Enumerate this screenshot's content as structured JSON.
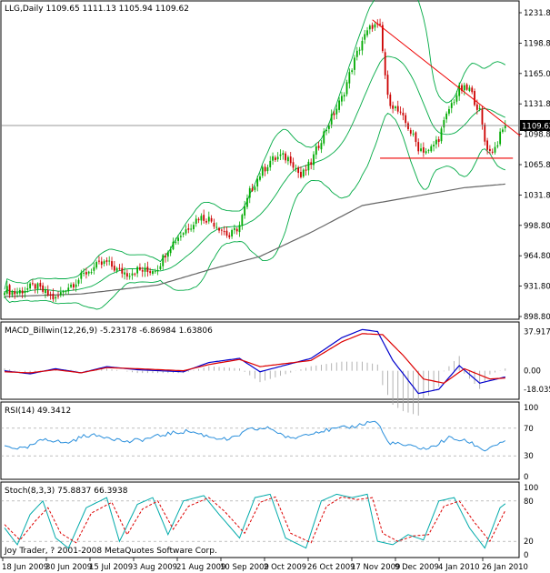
{
  "chart_data": {
    "type": "candlestick",
    "main": {
      "symbol_header": "LLG,Daily  1109.65 1111.13 1105.94 1109.62",
      "ylim": [
        898.8,
        1231.8
      ],
      "y_ticks": [
        "1231.80",
        "1198.80",
        "1165.00",
        "1131.80",
        "1098.80",
        "1065.80",
        "1031.80",
        "998.80",
        "964.80",
        "931.80",
        "898.80"
      ],
      "last_price": "1109.62",
      "indicators": [
        "Bollinger Bands",
        "long moving average (gray)"
      ],
      "price_path": [
        [
          0,
          927
        ],
        [
          4,
          922
        ],
        [
          8,
          926
        ],
        [
          12,
          930
        ],
        [
          16,
          922
        ],
        [
          20,
          915
        ],
        [
          24,
          928
        ],
        [
          28,
          935
        ],
        [
          32,
          945
        ],
        [
          36,
          952
        ],
        [
          40,
          956
        ],
        [
          44,
          948
        ],
        [
          48,
          944
        ],
        [
          52,
          948
        ],
        [
          56,
          946
        ],
        [
          60,
          951
        ],
        [
          64,
          972
        ],
        [
          68,
          985
        ],
        [
          72,
          996
        ],
        [
          76,
          1007
        ],
        [
          80,
          1005
        ],
        [
          84,
          996
        ],
        [
          88,
          985
        ],
        [
          92,
          998
        ],
        [
          96,
          1035
        ],
        [
          100,
          1055
        ],
        [
          104,
          1070
        ],
        [
          108,
          1075
        ],
        [
          112,
          1072
        ],
        [
          116,
          1052
        ],
        [
          120,
          1068
        ],
        [
          124,
          1095
        ],
        [
          128,
          1118
        ],
        [
          132,
          1140
        ],
        [
          136,
          1175
        ],
        [
          140,
          1205
        ],
        [
          144,
          1222
        ],
        [
          147,
          1218
        ],
        [
          150,
          1140
        ],
        [
          154,
          1125
        ],
        [
          158,
          1108
        ],
        [
          162,
          1085
        ],
        [
          166,
          1080
        ],
        [
          170,
          1096
        ],
        [
          174,
          1128
        ],
        [
          178,
          1150
        ],
        [
          182,
          1150
        ],
        [
          186,
          1125
        ],
        [
          188,
          1092
        ],
        [
          190,
          1080
        ],
        [
          192,
          1085
        ],
        [
          194,
          1098
        ],
        [
          196,
          1109.62
        ]
      ],
      "ma_path": [
        [
          0,
          918
        ],
        [
          30,
          921
        ],
        [
          60,
          931
        ],
        [
          80,
          948
        ],
        [
          100,
          963
        ],
        [
          120,
          990
        ],
        [
          140,
          1020
        ],
        [
          160,
          1030
        ],
        [
          180,
          1040
        ],
        [
          196,
          1044
        ]
      ],
      "annotations": {
        "trendline": [
          [
            144,
            1228
          ],
          [
            199,
            1104
          ]
        ],
        "support": [
          [
            147,
            1073
          ],
          [
            199,
            1073
          ]
        ]
      }
    },
    "macd": {
      "label": "MACD_Billwin(12,26,9) -5.23178 -6.86984 1.63806",
      "y_ticks": [
        "37.9177",
        "0.00",
        "-18.0356"
      ],
      "ylim": [
        -25,
        42
      ],
      "series": [
        {
          "color": "#0000cc",
          "points": [
            [
              0,
              0
            ],
            [
              10,
              -3
            ],
            [
              20,
              2
            ],
            [
              30,
              -2
            ],
            [
              40,
              4
            ],
            [
              52,
              1
            ],
            [
              70,
              -1
            ],
            [
              80,
              8
            ],
            [
              92,
              12
            ],
            [
              100,
              -1
            ],
            [
              120,
              12
            ],
            [
              132,
              32
            ],
            [
              140,
              40
            ],
            [
              146,
              38
            ],
            [
              152,
              10
            ],
            [
              162,
              -22
            ],
            [
              170,
              -18
            ],
            [
              178,
              5
            ],
            [
              186,
              -12
            ],
            [
              196,
              -6
            ]
          ]
        },
        {
          "color": "#dd0000",
          "points": [
            [
              0,
              -1
            ],
            [
              10,
              -2
            ],
            [
              20,
              1
            ],
            [
              30,
              -2
            ],
            [
              40,
              3
            ],
            [
              52,
              2
            ],
            [
              70,
              0
            ],
            [
              80,
              6
            ],
            [
              92,
              11
            ],
            [
              100,
              4
            ],
            [
              120,
              10
            ],
            [
              132,
              28
            ],
            [
              140,
              36
            ],
            [
              148,
              35
            ],
            [
              156,
              15
            ],
            [
              164,
              -8
            ],
            [
              172,
              -12
            ],
            [
              180,
              2
            ],
            [
              190,
              -8
            ],
            [
              196,
              -7
            ]
          ]
        }
      ]
    },
    "rsi": {
      "label": "RSI(14) 49.3412",
      "y_ticks": [
        "100",
        "70",
        "30",
        "0"
      ],
      "levels": [
        70,
        30
      ],
      "ylim": [
        0,
        100
      ],
      "points": [
        [
          0,
          44
        ],
        [
          8,
          40
        ],
        [
          16,
          55
        ],
        [
          24,
          48
        ],
        [
          32,
          60
        ],
        [
          40,
          58
        ],
        [
          48,
          50
        ],
        [
          56,
          55
        ],
        [
          64,
          62
        ],
        [
          72,
          66
        ],
        [
          80,
          58
        ],
        [
          88,
          53
        ],
        [
          96,
          68
        ],
        [
          104,
          70
        ],
        [
          112,
          54
        ],
        [
          120,
          64
        ],
        [
          128,
          68
        ],
        [
          136,
          72
        ],
        [
          144,
          80
        ],
        [
          146,
          78
        ],
        [
          150,
          50
        ],
        [
          158,
          44
        ],
        [
          166,
          40
        ],
        [
          174,
          56
        ],
        [
          182,
          50
        ],
        [
          188,
          38
        ],
        [
          192,
          46
        ],
        [
          196,
          49
        ]
      ]
    },
    "stoch": {
      "label": "Stoch(8,3,3) 75.8837 66.3938",
      "y_ticks": [
        "100",
        "80",
        "20",
        "0"
      ],
      "levels": [
        80,
        20
      ],
      "ylim": [
        0,
        100
      ],
      "series": [
        {
          "name": "",
          "color": "#00aaaa",
          "points": [
            [
              0,
              40
            ],
            [
              5,
              15
            ],
            [
              10,
              60
            ],
            [
              15,
              80
            ],
            [
              20,
              25
            ],
            [
              25,
              10
            ],
            [
              32,
              70
            ],
            [
              40,
              85
            ],
            [
              45,
              20
            ],
            [
              52,
              75
            ],
            [
              58,
              85
            ],
            [
              64,
              30
            ],
            [
              70,
              80
            ],
            [
              78,
              88
            ],
            [
              84,
              60
            ],
            [
              92,
              25
            ],
            [
              98,
              85
            ],
            [
              104,
              90
            ],
            [
              110,
              25
            ],
            [
              118,
              10
            ],
            [
              124,
              80
            ],
            [
              130,
              90
            ],
            [
              136,
              85
            ],
            [
              142,
              90
            ],
            [
              146,
              20
            ],
            [
              152,
              15
            ],
            [
              158,
              30
            ],
            [
              164,
              22
            ],
            [
              170,
              80
            ],
            [
              176,
              85
            ],
            [
              182,
              40
            ],
            [
              188,
              10
            ],
            [
              194,
              70
            ],
            [
              196,
              76
            ]
          ]
        },
        {
          "name": "",
          "color": "#dd0000",
          "points": [
            [
              0,
              45
            ],
            [
              6,
              22
            ],
            [
              12,
              50
            ],
            [
              17,
              70
            ],
            [
              22,
              32
            ],
            [
              28,
              18
            ],
            [
              34,
              62
            ],
            [
              42,
              78
            ],
            [
              48,
              30
            ],
            [
              54,
              68
            ],
            [
              60,
              80
            ],
            [
              66,
              38
            ],
            [
              72,
              72
            ],
            [
              80,
              85
            ],
            [
              86,
              65
            ],
            [
              94,
              32
            ],
            [
              100,
              78
            ],
            [
              106,
              86
            ],
            [
              112,
              32
            ],
            [
              120,
              18
            ],
            [
              126,
              72
            ],
            [
              132,
              86
            ],
            [
              138,
              82
            ],
            [
              144,
              85
            ],
            [
              148,
              32
            ],
            [
              154,
              20
            ],
            [
              160,
              28
            ],
            [
              166,
              30
            ],
            [
              172,
              72
            ],
            [
              178,
              80
            ],
            [
              184,
              48
            ],
            [
              190,
              20
            ],
            [
              196,
              66
            ]
          ]
        }
      ]
    },
    "x_ticks": [
      "18 Jun 2009",
      "30 Jun 2009",
      "15 Jul 2009",
      "3 Aug 2009",
      "21 Aug 2009",
      "10 Sep 2009",
      "2 Oct 2009",
      "26 Oct 2009",
      "17 Nov 2009",
      "9 Dec 2009",
      "4 Jan 2010",
      "26 Jan 2010"
    ],
    "copyright": "Joy Trader, ? 2001-2008 MetaQuotes Software Corp."
  },
  "colors": {
    "bull": "#00aa00",
    "bear": "#cc0000",
    "bands": "#00aa44",
    "ma": "#666666",
    "trend": "#ee0000"
  }
}
